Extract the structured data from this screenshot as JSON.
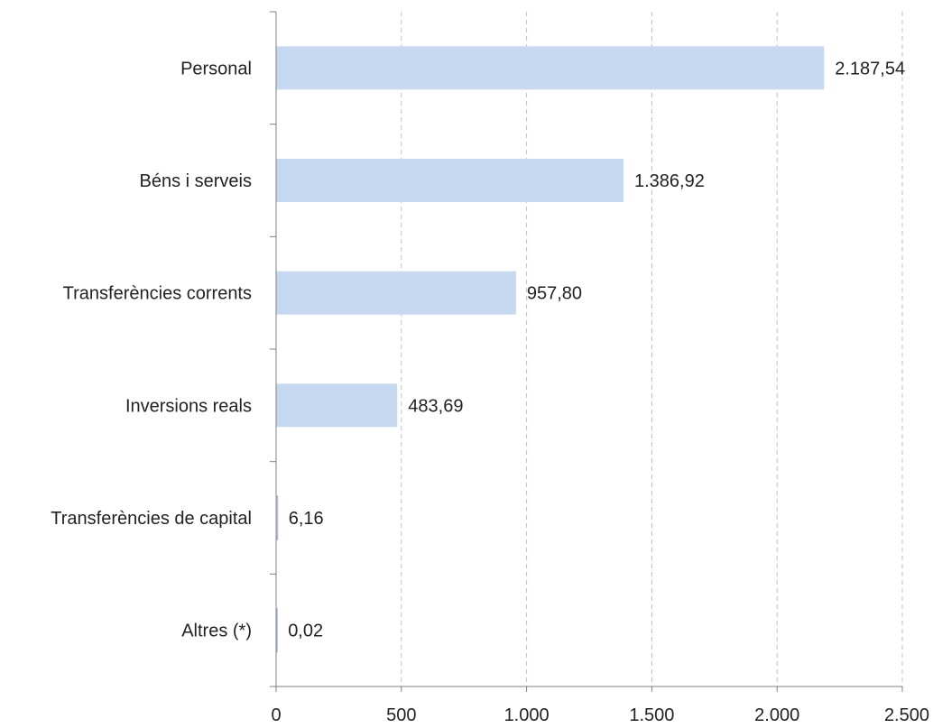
{
  "chart_data": {
    "type": "bar",
    "orientation": "horizontal",
    "categories": [
      "Personal",
      "Béns i serveis",
      "Transferències corrents",
      "Inversions reals",
      "Transferències de capital",
      "Altres (*)"
    ],
    "values": [
      2187.54,
      1386.92,
      957.8,
      483.69,
      6.16,
      0.02
    ],
    "data_labels": [
      "2.187,54",
      "1.386,92",
      "957,80",
      "483,69",
      "6,16",
      "0,02"
    ],
    "xlim": [
      0,
      2500
    ],
    "x_ticks": [
      0,
      500,
      1000,
      1500,
      2000,
      2500
    ],
    "x_tick_labels": [
      "0",
      "500",
      "1.000",
      "1.500",
      "2.000",
      "2.500"
    ],
    "title": "",
    "xlabel": "",
    "ylabel": "",
    "grid": "vertical dashed",
    "legend": "none",
    "bar_color": "#c6d9f1",
    "bar_edge_color": "#95b3d7",
    "axis_color": "#808080",
    "grid_color": "#c0c0c0"
  }
}
